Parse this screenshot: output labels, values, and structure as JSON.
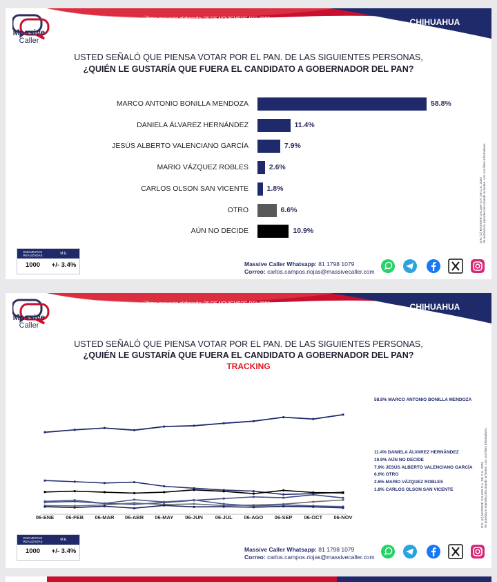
{
  "header": {
    "encuesta_date": "Última encuesta elaborada: 06 DE NOVIEMBRE DEL 2025",
    "region": "CHIHUAHUA",
    "logo_line1": "Massive",
    "logo_line2": "Caller"
  },
  "question": {
    "line1": "USTED SEÑALÓ QUE PIENSA VOTAR POR EL PAN. DE LAS SIGUIENTES PERSONAS,",
    "line2": "¿QUIÉN LE GUSTARÍA QUE FUERA EL CANDIDATO A GOBERNADOR DEL PAN?",
    "tracking_label": "TRACKING"
  },
  "side_note": {
    "line1": "D.R. (C) MASSIVE CALLER S.A. DE C.V., 2025",
    "line2": "Se autoriza la reproducción citando la fuente. Uso con fines informativos."
  },
  "footer": {
    "encuestas_label": "ENCUESTAS REALIZADAS",
    "me_label": "M.E.",
    "encuestas_value": "1000",
    "me_value": "+/- 3.4%",
    "whatsapp_label": "Massive Caller Whatsapp:",
    "whatsapp_number": "81 1798 1079",
    "correo_label": "Correo:",
    "correo_value": "carlos.campos.riojas@massivecaller.com"
  },
  "social_icons": [
    "whatsapp-icon",
    "telegram-icon",
    "facebook-icon",
    "x-icon",
    "instagram-icon"
  ],
  "colors": {
    "navy": "#1f2a6b",
    "red": "#c8102e",
    "gray_bar": "#595959",
    "black_bar": "#000000"
  },
  "chart_data": [
    {
      "type": "bar",
      "orientation": "horizontal",
      "categories": [
        "MARCO ANTONIO BONILLA MENDOZA",
        "DANIELA ÁLVAREZ HERNÁNDEZ",
        "JESÚS ALBERTO VALENCIANO GARCÍA",
        "MARIO VÁZQUEZ ROBLES",
        "CARLOS OLSON SAN VICENTE",
        "OTRO",
        "AÚN NO DECIDE"
      ],
      "values": [
        58.8,
        11.4,
        7.9,
        2.6,
        1.8,
        6.6,
        10.9
      ],
      "value_labels": [
        "58.8%",
        "11.4%",
        "7.9%",
        "2.6%",
        "1.8%",
        "6.6%",
        "10.9%"
      ],
      "bar_colors": [
        "#1f2a6b",
        "#1f2a6b",
        "#1f2a6b",
        "#1f2a6b",
        "#1f2a6b",
        "#595959",
        "#000000"
      ],
      "xlim": [
        0,
        60
      ]
    },
    {
      "type": "line",
      "x": [
        "06-ENE",
        "06-FEB",
        "06-MAR",
        "06-ABR",
        "06-MAY",
        "06-JUN",
        "06-JUL",
        "06-AGO",
        "06-SEP",
        "06-OCT",
        "06-NOV"
      ],
      "ylim": [
        0,
        60
      ],
      "series": [
        {
          "name": "58.8% MARCO ANTONIO BONILLA MENDOZA",
          "color": "#1f2a6b",
          "values": [
            48.0,
            49.5,
            50.6,
            49.3,
            51.5,
            52.0,
            53.5,
            54.8,
            57.2,
            56.1,
            58.8
          ]
        },
        {
          "name": "11.4% DANIELA ÁLVAREZ HERNÁNDEZ",
          "color": "#2a3170",
          "values": [
            18.5,
            17.8,
            17.0,
            17.5,
            15.0,
            13.8,
            12.7,
            12.0,
            10.0,
            10.5,
            11.4
          ]
        },
        {
          "name": "10.9% AÚN NO DECIDE",
          "color": "#000000",
          "values": [
            11.5,
            12.0,
            11.4,
            10.8,
            11.4,
            12.8,
            11.9,
            10.5,
            12.5,
            11.2,
            10.9
          ]
        },
        {
          "name": "7.9% JESÚS ALBERTO VALENCIANO GARCÍA",
          "color": "#3a4a86",
          "values": [
            5.2,
            5.7,
            4.5,
            4.0,
            5.0,
            6.4,
            7.5,
            8.5,
            8.0,
            9.8,
            7.9
          ]
        },
        {
          "name": "6.6% OTRO",
          "color": "#6d6d6d",
          "values": [
            3.2,
            3.0,
            3.6,
            4.8,
            3.8,
            4.2,
            3.2,
            3.5,
            4.1,
            5.5,
            6.6
          ]
        },
        {
          "name": "2.6% MARIO VÁZQUEZ ROBLES",
          "color": "#4d5b8f",
          "values": [
            5.8,
            6.5,
            4.5,
            6.8,
            5.4,
            6.6,
            4.2,
            3.0,
            3.6,
            3.0,
            2.6
          ]
        },
        {
          "name": "1.8% CARLOS OLSON SAN VICENTE",
          "color": "#1a2260",
          "values": [
            2.5,
            2.0,
            2.8,
            1.6,
            3.3,
            2.4,
            2.5,
            2.2,
            2.7,
            2.4,
            1.8
          ]
        }
      ]
    }
  ]
}
